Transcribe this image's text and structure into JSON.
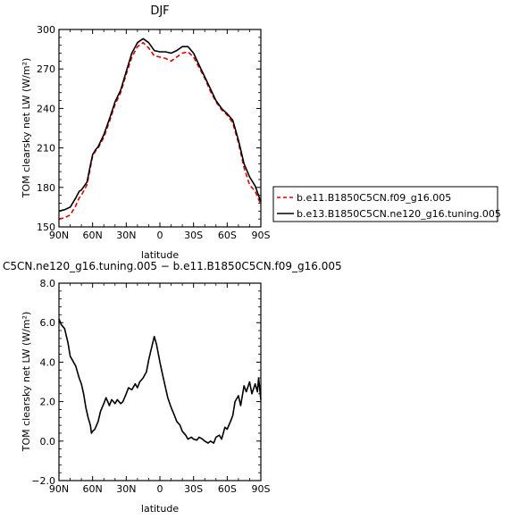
{
  "chart_data": [
    {
      "type": "line",
      "title": "DJF",
      "xlabel": "latitude",
      "ylabel": "TOM clearsky net LW (W/m²)",
      "xlim": [
        90,
        -90
      ],
      "ylim": [
        150,
        300
      ],
      "xticks": [
        90,
        60,
        30,
        0,
        -30,
        -60,
        -90
      ],
      "xtick_labels": [
        "90N",
        "60N",
        "30N",
        "0",
        "30S",
        "60S",
        "90S"
      ],
      "yticks": [
        150,
        180,
        210,
        240,
        270,
        300
      ],
      "ytick_labels": [
        "150",
        "180",
        "210",
        "240",
        "270",
        "300"
      ],
      "grid": false,
      "legend_position": "right",
      "series": [
        {
          "name": "b.e11.B1850C5CN.f09_g16.005",
          "color": "#e00000",
          "style": "dashed",
          "x": [
            90,
            85,
            80,
            75,
            72,
            70,
            65,
            62,
            60,
            57,
            55,
            50,
            45,
            40,
            35,
            30,
            25,
            20,
            15,
            10,
            5,
            0,
            -5,
            -10,
            -15,
            -20,
            -25,
            -30,
            -35,
            -40,
            -45,
            -50,
            -55,
            -60,
            -65,
            -70,
            -75,
            -80,
            -85,
            -90
          ],
          "y": [
            156,
            157,
            159,
            166,
            172,
            174,
            182,
            195,
            204,
            208,
            210,
            218,
            230,
            243,
            252,
            266,
            279,
            287,
            290,
            286,
            280,
            279,
            278,
            276,
            279,
            282,
            283,
            279,
            271,
            263,
            253,
            245,
            239,
            235,
            229,
            214,
            195,
            182,
            177,
            167
          ]
        },
        {
          "name": "b.e13.B1850C5CN.ne120_g16.tuning.005",
          "color": "#000000",
          "style": "solid",
          "x": [
            90,
            85,
            80,
            75,
            72,
            70,
            65,
            62,
            60,
            57,
            55,
            50,
            45,
            40,
            35,
            30,
            25,
            20,
            15,
            10,
            5,
            0,
            -5,
            -10,
            -15,
            -20,
            -25,
            -30,
            -35,
            -40,
            -45,
            -50,
            -55,
            -60,
            -65,
            -70,
            -75,
            -80,
            -85,
            -90
          ],
          "y": [
            162,
            163,
            165,
            172,
            177,
            178,
            184,
            197,
            205,
            209,
            211,
            220,
            232,
            245,
            254,
            268,
            282,
            290,
            293,
            290,
            284,
            283,
            283,
            282,
            284,
            287,
            287,
            282,
            273,
            264,
            255,
            246,
            240,
            236,
            231,
            216,
            198,
            188,
            181,
            169
          ]
        }
      ]
    },
    {
      "type": "line",
      "title": "C5CN.ne120_g16.tuning.005 − b.e11.B1850C5CN.f09_g16.005",
      "xlabel": "latitude",
      "ylabel": "TOM clearsky net LW (W/m²)",
      "xlim": [
        90,
        -90
      ],
      "ylim": [
        -2.0,
        8.0
      ],
      "xticks": [
        90,
        60,
        30,
        0,
        -30,
        -60,
        -90
      ],
      "xtick_labels": [
        "90N",
        "60N",
        "30N",
        "0",
        "30S",
        "60S",
        "90S"
      ],
      "yticks": [
        -2.0,
        0.0,
        2.0,
        4.0,
        6.0,
        8.0
      ],
      "ytick_labels": [
        "−2.0",
        "0.0",
        "2.0",
        "4.0",
        "6.0",
        "8.0"
      ],
      "grid": false,
      "series": [
        {
          "color": "#000000",
          "style": "solid",
          "x": [
            90,
            88,
            85,
            82,
            80,
            78,
            75,
            72,
            70,
            68,
            66,
            64,
            62,
            61,
            60,
            58,
            55,
            53,
            50,
            48,
            45,
            43,
            40,
            38,
            35,
            33,
            30,
            28,
            25,
            22,
            20,
            18,
            15,
            12,
            10,
            8,
            5,
            3,
            0,
            -3,
            -5,
            -7,
            -10,
            -13,
            -15,
            -18,
            -20,
            -23,
            -25,
            -28,
            -30,
            -33,
            -35,
            -38,
            -40,
            -43,
            -45,
            -48,
            -50,
            -53,
            -55,
            -58,
            -60,
            -63,
            -65,
            -67,
            -70,
            -72,
            -75,
            -77,
            -80,
            -82,
            -85,
            -87,
            -88,
            -90
          ],
          "y": [
            6.2,
            5.9,
            5.7,
            5.0,
            4.3,
            4.1,
            3.8,
            3.2,
            2.9,
            2.4,
            1.7,
            1.2,
            0.8,
            0.4,
            0.5,
            0.6,
            1.0,
            1.5,
            1.9,
            2.2,
            1.8,
            2.1,
            1.9,
            2.1,
            1.9,
            2.0,
            2.4,
            2.7,
            2.6,
            2.9,
            2.7,
            3.0,
            3.2,
            3.5,
            4.1,
            4.6,
            5.3,
            4.9,
            4.0,
            3.2,
            2.7,
            2.2,
            1.7,
            1.3,
            1.0,
            0.8,
            0.5,
            0.3,
            0.1,
            0.2,
            0.1,
            0.05,
            0.2,
            0.1,
            0.0,
            -0.1,
            0.0,
            -0.1,
            0.2,
            0.3,
            0.1,
            0.7,
            0.6,
            1.0,
            1.3,
            2.0,
            2.3,
            1.8,
            2.8,
            2.5,
            3.0,
            2.4,
            2.9,
            2.5,
            3.2,
            2.1
          ]
        }
      ]
    }
  ]
}
